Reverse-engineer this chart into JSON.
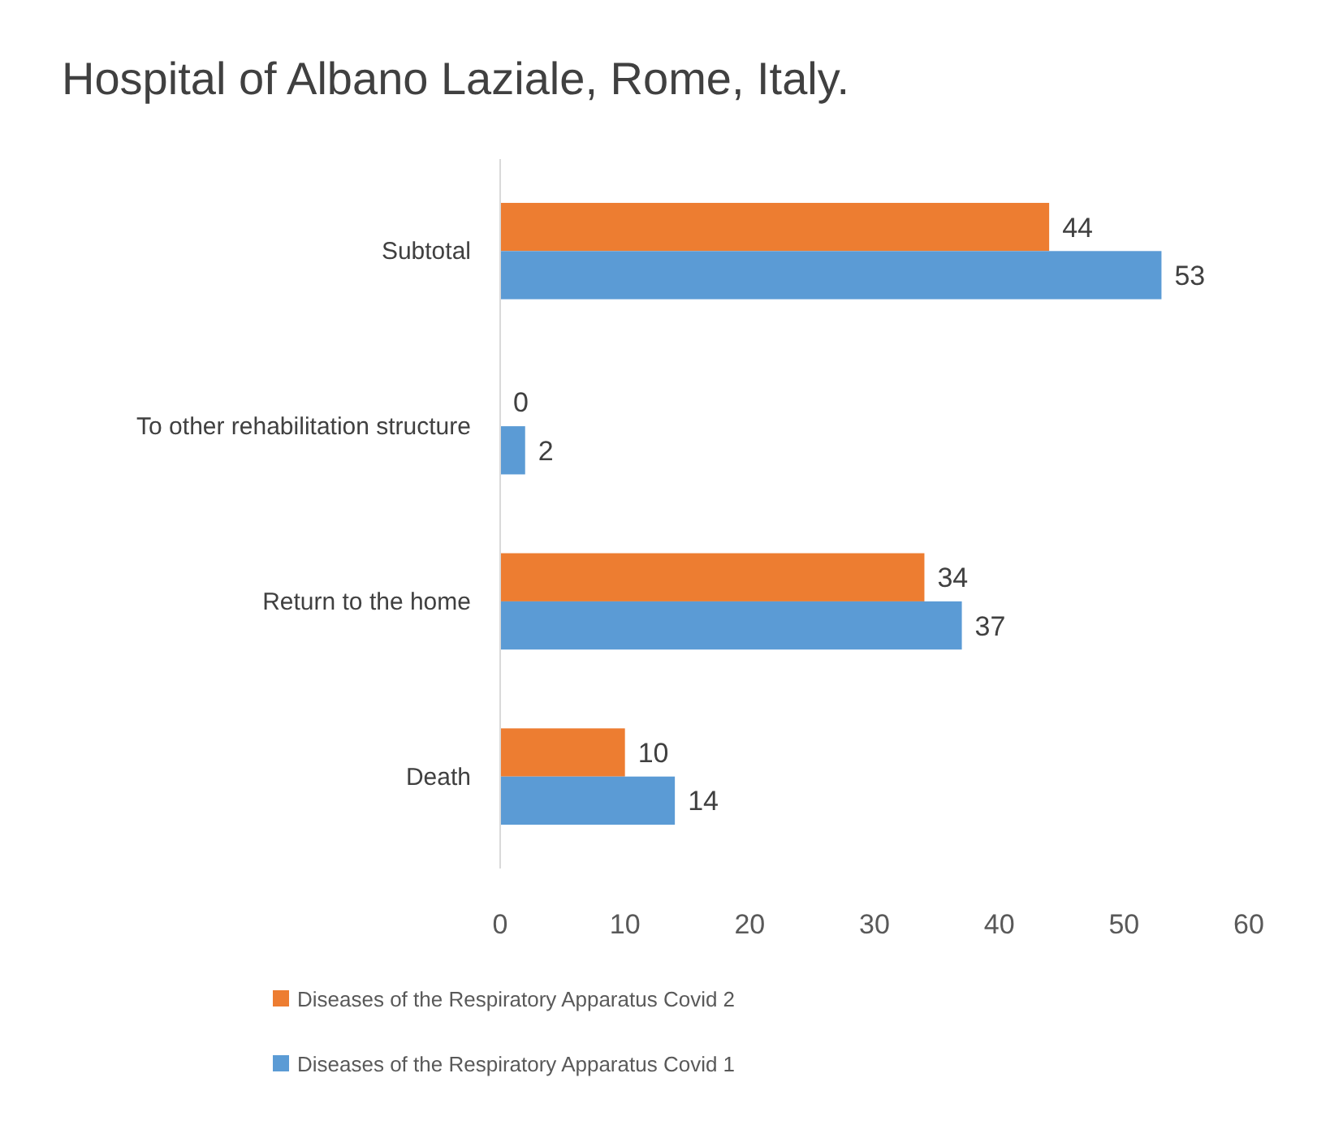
{
  "chart_data": {
    "type": "bar",
    "orientation": "horizontal",
    "title": "Hospital of Albano Laziale, Rome, Italy.",
    "categories": [
      "Subtotal",
      "To other rehabilitation structure",
      "Return to the home",
      "Death"
    ],
    "series": [
      {
        "name": "Diseases of the Respiratory Apparatus Covid 2",
        "color": "#ed7d31",
        "values": [
          44,
          0,
          34,
          10
        ]
      },
      {
        "name": "Diseases of the Respiratory Apparatus Covid 1",
        "color": "#5b9bd5",
        "values": [
          53,
          2,
          37,
          14
        ]
      }
    ],
    "xlim": [
      0,
      60
    ],
    "xticks": [
      0,
      10,
      20,
      30,
      40,
      50,
      60
    ],
    "grid": false,
    "legend": "bottom",
    "data_labels": true
  }
}
